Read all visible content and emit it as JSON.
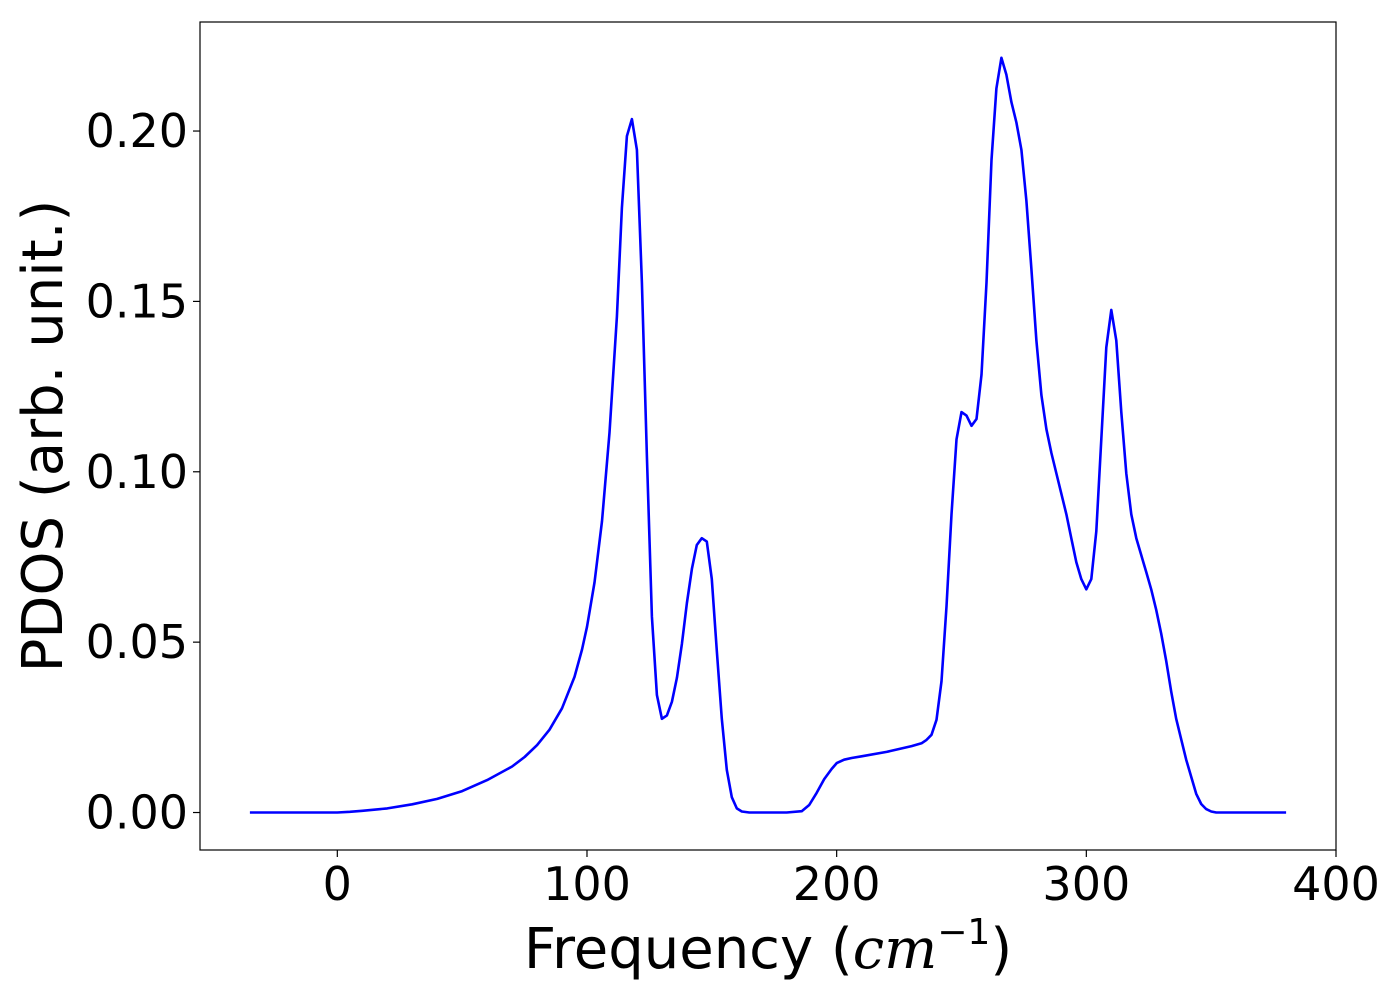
{
  "chart_data": {
    "type": "line",
    "title": "",
    "xlabel": "Frequency (cm⁻¹)",
    "xlabel_parts": {
      "prefix": "Frequency (",
      "unit": "cm",
      "exponent": "−1",
      "suffix": ")"
    },
    "ylabel": "PDOS (arb. unit.)",
    "xlim": [
      -55,
      400
    ],
    "ylim": [
      -0.011,
      0.232
    ],
    "xticks": [
      0,
      100,
      200,
      300,
      400
    ],
    "xtick_labels": [
      "0",
      "100",
      "200",
      "300",
      "400"
    ],
    "yticks": [
      0.0,
      0.05,
      0.1,
      0.15,
      0.2
    ],
    "ytick_labels": [
      "0.00",
      "0.05",
      "0.10",
      "0.15",
      "0.20"
    ],
    "grid": false,
    "legend": false,
    "line_color": "#0000ff",
    "series": [
      {
        "x": [
          -35,
          -20,
          0,
          5,
          10,
          20,
          30,
          40,
          50,
          60,
          70,
          75,
          80,
          85,
          90,
          95,
          98,
          100,
          103,
          106,
          109,
          112,
          114,
          116,
          118,
          120,
          122,
          124,
          126,
          128,
          130,
          132,
          134,
          136,
          138,
          140,
          142,
          144,
          146,
          148,
          150,
          152,
          154,
          156,
          158,
          160,
          162,
          165,
          170,
          180,
          186,
          189,
          192,
          195,
          198,
          200,
          203,
          206,
          210,
          220,
          230,
          234,
          236,
          238,
          240,
          242,
          244,
          246,
          248,
          250,
          252,
          254,
          256,
          258,
          260,
          262,
          264,
          266,
          268,
          270,
          272,
          274,
          276,
          278,
          280,
          282,
          284,
          286,
          288,
          290,
          292,
          294,
          296,
          298,
          300,
          302,
          304,
          306,
          308,
          310,
          312,
          314,
          316,
          318,
          320,
          322,
          324,
          326,
          328,
          330,
          332,
          334,
          336,
          338,
          340,
          342,
          344,
          346,
          348,
          350,
          352,
          354,
          356,
          360,
          370,
          380
        ],
        "y": [
          0,
          0,
          0,
          0.0002,
          0.0005,
          0.0012,
          0.0024,
          0.004,
          0.0063,
          0.0095,
          0.0135,
          0.0163,
          0.0198,
          0.0243,
          0.0306,
          0.0398,
          0.0478,
          0.0545,
          0.0675,
          0.0855,
          0.1115,
          0.1455,
          0.1775,
          0.1985,
          0.2035,
          0.1945,
          0.1555,
          0.1045,
          0.0575,
          0.0345,
          0.0275,
          0.0285,
          0.0325,
          0.0395,
          0.0495,
          0.0615,
          0.0715,
          0.0785,
          0.0805,
          0.0795,
          0.0685,
          0.0475,
          0.0275,
          0.0125,
          0.0045,
          0.0012,
          0.0003,
          0,
          0,
          0,
          0.0004,
          0.0022,
          0.0058,
          0.0098,
          0.0128,
          0.0145,
          0.0155,
          0.016,
          0.0165,
          0.0178,
          0.0195,
          0.0203,
          0.0213,
          0.0228,
          0.0272,
          0.0385,
          0.0605,
          0.0875,
          0.1095,
          0.1175,
          0.1165,
          0.1135,
          0.1155,
          0.1285,
          0.1555,
          0.1915,
          0.2125,
          0.2215,
          0.2165,
          0.2085,
          0.2025,
          0.1945,
          0.1795,
          0.1595,
          0.1385,
          0.1225,
          0.1125,
          0.1055,
          0.0995,
          0.0935,
          0.0875,
          0.0805,
          0.0735,
          0.0685,
          0.0655,
          0.0685,
          0.0825,
          0.1095,
          0.1365,
          0.1475,
          0.1385,
          0.1175,
          0.0995,
          0.0875,
          0.0805,
          0.0755,
          0.0705,
          0.0655,
          0.0595,
          0.0525,
          0.0445,
          0.0355,
          0.0275,
          0.0215,
          0.0155,
          0.0105,
          0.0055,
          0.0025,
          0.001,
          0.0003,
          0,
          0,
          0,
          0,
          0,
          0
        ]
      }
    ]
  }
}
